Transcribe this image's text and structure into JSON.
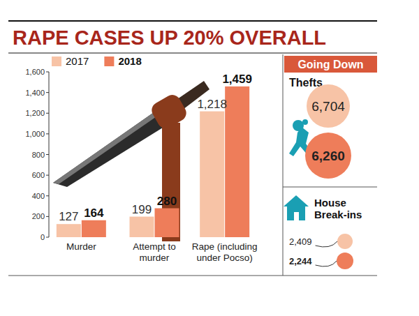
{
  "chart_data": [
    {
      "type": "bar",
      "title": "RAPE CASES UP 20% OVERALL",
      "categories": [
        "Murder",
        "Attempt to murder",
        "Rape (including under Pocso)"
      ],
      "series": [
        {
          "name": "2017",
          "color": "#f7c3a6",
          "values": [
            127,
            199,
            1218
          ],
          "value_labels": [
            "127",
            "199",
            "1,218"
          ]
        },
        {
          "name": "2018",
          "color": "#ee7d5a",
          "values": [
            164,
            280,
            1459
          ],
          "value_labels": [
            "164",
            "280",
            "1,459"
          ]
        }
      ],
      "ylim": [
        0,
        1600
      ],
      "yticks": [
        0,
        200,
        400,
        600,
        800,
        {
          "value": 1000,
          "label": "1,000"
        },
        {
          "value": 1200,
          "label": "1,200"
        },
        {
          "value": 1400,
          "label": "1,400"
        },
        {
          "value": 1600,
          "label": "1,600"
        }
      ],
      "grid": false,
      "legend": "top-left",
      "data_labels": true
    },
    {
      "type": "circle",
      "title": "Going Down",
      "categories": [
        "Thefts",
        "House Break-ins"
      ],
      "series": [
        {
          "color": "#f7c3a6",
          "values": [
            6704,
            2409
          ],
          "value_labels": [
            "6,704",
            "2,409"
          ]
        },
        {
          "color": "#ee7d5a",
          "values": [
            6260,
            2244
          ],
          "value_labels": [
            "6,260",
            "2,244"
          ]
        }
      ],
      "data_labels": true
    }
  ]
}
